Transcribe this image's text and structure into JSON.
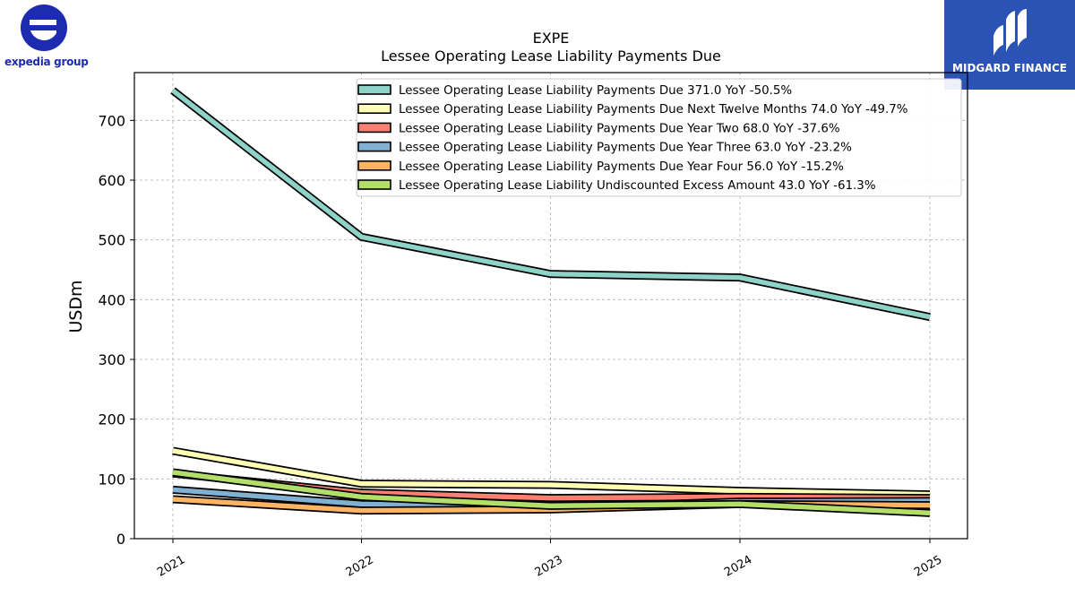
{
  "logos": {
    "left": {
      "text": "expedia group",
      "color": "#1c2bb0"
    },
    "right": {
      "text": "MIDGARD FINANCE",
      "background": "#2b52b5"
    }
  },
  "chart_data": {
    "type": "line",
    "title": "EXPE",
    "subtitle": "Lessee Operating Lease Liability Payments Due",
    "xlabel": "",
    "ylabel": "USDm",
    "x": [
      "2021",
      "2022",
      "2023",
      "2024",
      "2025"
    ],
    "ylim": [
      0,
      780
    ],
    "yticks": [
      0,
      100,
      200,
      300,
      400,
      500,
      600,
      700
    ],
    "grid": true,
    "legend_position": "top-right",
    "series": [
      {
        "name": "Lessee Operating Lease Liability Payments Due",
        "legend": "Lessee Operating Lease Liability Payments Due  371.0 YoY -50.5%",
        "values": [
          750,
          505,
          443,
          437,
          371
        ],
        "color": "#8dd3c7"
      },
      {
        "name": "Lessee Operating Lease Liability Payments Due Next Twelve Months",
        "legend": "Lessee Operating Lease Liability Payments Due Next Twelve Months  74.0 YoY -49.7%",
        "values": [
          147,
          92,
          90,
          80,
          74
        ],
        "color": "#ffffb3"
      },
      {
        "name": "Lessee Operating Lease Liability Payments Due Year Two",
        "legend": "Lessee Operating Lease Liability Payments Due Year Two  68.0 YoY -37.6%",
        "values": [
          109,
          77,
          68,
          70,
          68
        ],
        "color": "#fb8072"
      },
      {
        "name": "Lessee Operating Lease Liability Payments Due Year Three",
        "legend": "Lessee Operating Lease Liability Payments Due Year Three  63.0 YoY -23.2%",
        "values": [
          82,
          58,
          52,
          62,
          63
        ],
        "color": "#80b1d3"
      },
      {
        "name": "Lessee Operating Lease Liability Payments Due Year Four",
        "legend": "Lessee Operating Lease Liability Payments Due Year Four  56.0 YoY -15.2%",
        "values": [
          66,
          47,
          49,
          58,
          56
        ],
        "color": "#fdb462"
      },
      {
        "name": "Lessee Operating Lease Liability Undiscounted Excess Amount",
        "legend": "Lessee Operating Lease Liability Undiscounted Excess Amount  43.0 YoY -61.3%",
        "values": [
          111,
          70,
          55,
          58,
          43
        ],
        "color": "#b3de69"
      }
    ]
  }
}
